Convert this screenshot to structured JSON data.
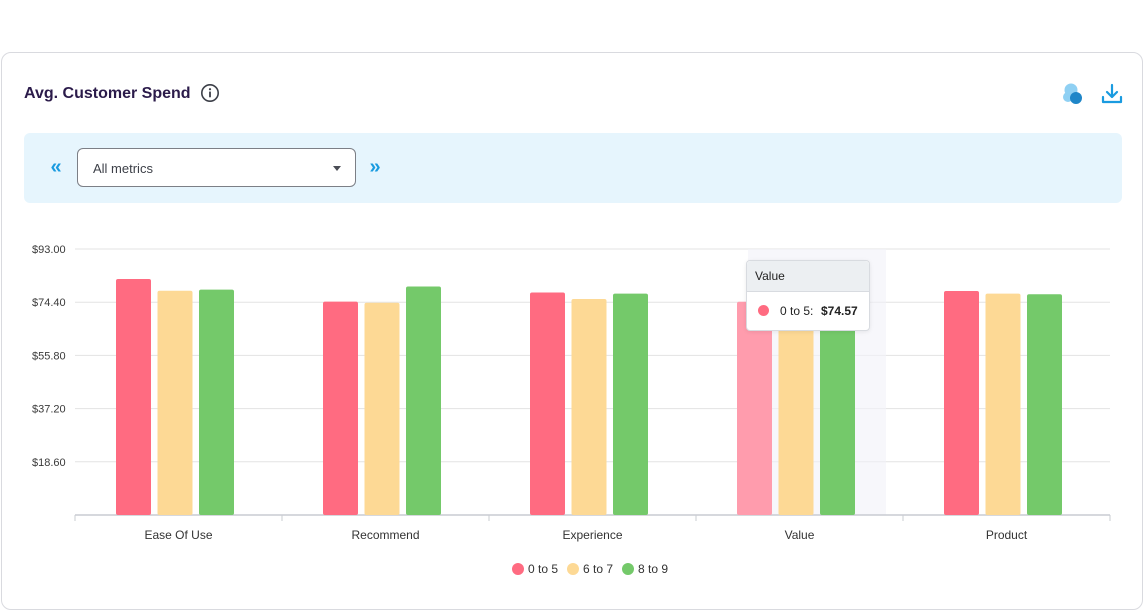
{
  "header": {
    "title": "Avg. Customer Spend",
    "icons": [
      "info-icon",
      "venn-icon",
      "download-icon"
    ]
  },
  "filter": {
    "prev_label": "«",
    "next_label": "»",
    "select_value": "All metrics"
  },
  "colors": {
    "series": [
      "#ff6b81",
      "#fdd995",
      "#74c96a"
    ],
    "grid": "#e3e3e3",
    "axis": "#c9ccd2"
  },
  "tooltip": {
    "title": "Value",
    "series": "0 to 5:",
    "value": "$74.57"
  },
  "chart_data": {
    "type": "bar",
    "title": "Avg. Customer Spend",
    "categories": [
      "Ease Of Use",
      "Recommend",
      "Experience",
      "Value",
      "Product"
    ],
    "series": [
      {
        "name": "0 to 5",
        "values": [
          82.5,
          74.6,
          77.8,
          74.57,
          78.3
        ]
      },
      {
        "name": "6 to 7",
        "values": [
          78.4,
          74.2,
          75.5,
          74.4,
          77.4
        ]
      },
      {
        "name": "8 to 9",
        "values": [
          78.8,
          79.9,
          77.4,
          77.0,
          77.2
        ]
      }
    ],
    "yticks": [
      "$93.00",
      "$74.40",
      "$55.80",
      "$37.20",
      "$18.60"
    ],
    "ylim": [
      0,
      93
    ],
    "grid": true,
    "legend": "bottom",
    "highlighted_category": "Value"
  }
}
